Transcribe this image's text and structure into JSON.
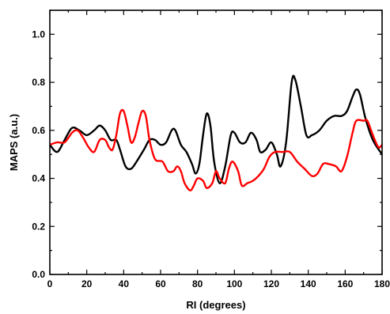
{
  "chart_data": {
    "type": "line",
    "title": "",
    "xlabel": "RI (degrees)",
    "ylabel": "MAPS (a.u.)",
    "xlim": [
      0,
      180
    ],
    "ylim": [
      0,
      1.1
    ],
    "x_ticks": [
      0,
      20,
      40,
      60,
      80,
      100,
      120,
      140,
      160,
      180
    ],
    "x_tick_labels": [
      "0",
      "20",
      "40",
      "60",
      "80",
      "100",
      "120",
      "140",
      "160",
      "180"
    ],
    "y_ticks": [
      0,
      0.2,
      0.4,
      0.6,
      0.8,
      1.0
    ],
    "y_tick_labels": [
      "0.0",
      "0.2",
      "0.4",
      "0.6",
      "0.8",
      "1.0"
    ],
    "grid": false,
    "legend": "none",
    "series": [
      {
        "color": "#000000",
        "points": [
          [
            0,
            0.54
          ],
          [
            4,
            0.51
          ],
          [
            8,
            0.56
          ],
          [
            12,
            0.61
          ],
          [
            16,
            0.6
          ],
          [
            20,
            0.58
          ],
          [
            24,
            0.6
          ],
          [
            27,
            0.62
          ],
          [
            30,
            0.6
          ],
          [
            33,
            0.56
          ],
          [
            36,
            0.56
          ],
          [
            38,
            0.52
          ],
          [
            41,
            0.45
          ],
          [
            44,
            0.44
          ],
          [
            47,
            0.47
          ],
          [
            51,
            0.52
          ],
          [
            54,
            0.56
          ],
          [
            57,
            0.56
          ],
          [
            60,
            0.54
          ],
          [
            63,
            0.55
          ],
          [
            66,
            0.6
          ],
          [
            68,
            0.6
          ],
          [
            71,
            0.54
          ],
          [
            74,
            0.51
          ],
          [
            77,
            0.46
          ],
          [
            79,
            0.42
          ],
          [
            81,
            0.46
          ],
          [
            83,
            0.58
          ],
          [
            85,
            0.67
          ],
          [
            87,
            0.62
          ],
          [
            89,
            0.47
          ],
          [
            92,
            0.38
          ],
          [
            95,
            0.45
          ],
          [
            98,
            0.58
          ],
          [
            100,
            0.59
          ],
          [
            103,
            0.55
          ],
          [
            106,
            0.55
          ],
          [
            109,
            0.59
          ],
          [
            112,
            0.56
          ],
          [
            114,
            0.51
          ],
          [
            117,
            0.52
          ],
          [
            120,
            0.55
          ],
          [
            123,
            0.5
          ],
          [
            125,
            0.45
          ],
          [
            128,
            0.55
          ],
          [
            131,
            0.8
          ],
          [
            133,
            0.81
          ],
          [
            136,
            0.7
          ],
          [
            139,
            0.58
          ],
          [
            142,
            0.58
          ],
          [
            146,
            0.6
          ],
          [
            150,
            0.64
          ],
          [
            154,
            0.66
          ],
          [
            158,
            0.66
          ],
          [
            161,
            0.68
          ],
          [
            164,
            0.74
          ],
          [
            166,
            0.77
          ],
          [
            168,
            0.75
          ],
          [
            171,
            0.65
          ],
          [
            175,
            0.56
          ],
          [
            180,
            0.5
          ]
        ]
      },
      {
        "color": "#ff0000",
        "points": [
          [
            0,
            0.54
          ],
          [
            4,
            0.55
          ],
          [
            8,
            0.55
          ],
          [
            12,
            0.59
          ],
          [
            15,
            0.6
          ],
          [
            18,
            0.57
          ],
          [
            21,
            0.53
          ],
          [
            24,
            0.51
          ],
          [
            27,
            0.56
          ],
          [
            30,
            0.56
          ],
          [
            32,
            0.53
          ],
          [
            34,
            0.52
          ],
          [
            36,
            0.58
          ],
          [
            38,
            0.67
          ],
          [
            40,
            0.68
          ],
          [
            42,
            0.62
          ],
          [
            44,
            0.55
          ],
          [
            46,
            0.57
          ],
          [
            48,
            0.63
          ],
          [
            50,
            0.68
          ],
          [
            52,
            0.66
          ],
          [
            54,
            0.56
          ],
          [
            57,
            0.48
          ],
          [
            61,
            0.47
          ],
          [
            64,
            0.43
          ],
          [
            67,
            0.43
          ],
          [
            69,
            0.45
          ],
          [
            71,
            0.43
          ],
          [
            73,
            0.38
          ],
          [
            76,
            0.35
          ],
          [
            78,
            0.37
          ],
          [
            80,
            0.4
          ],
          [
            83,
            0.39
          ],
          [
            85,
            0.36
          ],
          [
            88,
            0.38
          ],
          [
            90,
            0.43
          ],
          [
            92,
            0.4
          ],
          [
            95,
            0.38
          ],
          [
            97,
            0.44
          ],
          [
            99,
            0.47
          ],
          [
            102,
            0.43
          ],
          [
            104,
            0.37
          ],
          [
            107,
            0.38
          ],
          [
            110,
            0.39
          ],
          [
            113,
            0.41
          ],
          [
            116,
            0.44
          ],
          [
            119,
            0.49
          ],
          [
            122,
            0.51
          ],
          [
            126,
            0.51
          ],
          [
            130,
            0.51
          ],
          [
            134,
            0.47
          ],
          [
            138,
            0.44
          ],
          [
            142,
            0.41
          ],
          [
            145,
            0.42
          ],
          [
            148,
            0.46
          ],
          [
            151,
            0.46
          ],
          [
            155,
            0.45
          ],
          [
            158,
            0.43
          ],
          [
            161,
            0.49
          ],
          [
            164,
            0.59
          ],
          [
            166,
            0.64
          ],
          [
            170,
            0.64
          ],
          [
            172,
            0.64
          ],
          [
            175,
            0.58
          ],
          [
            178,
            0.53
          ],
          [
            180,
            0.54
          ]
        ]
      }
    ]
  }
}
